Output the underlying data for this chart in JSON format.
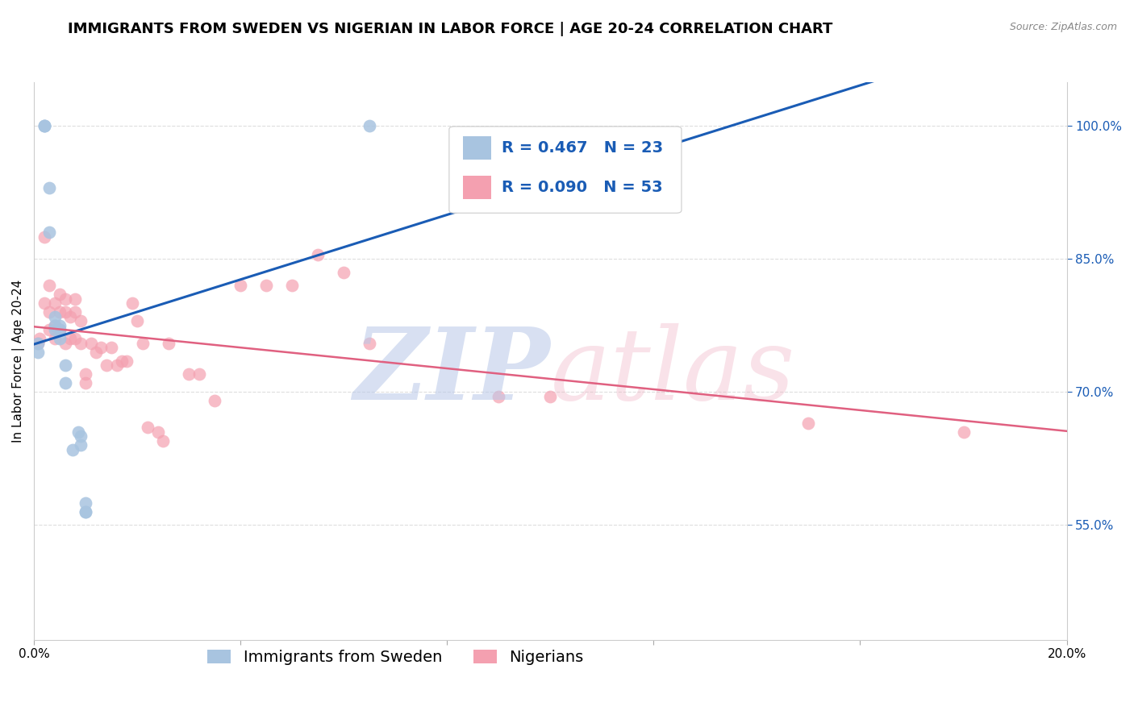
{
  "title": "IMMIGRANTS FROM SWEDEN VS NIGERIAN IN LABOR FORCE | AGE 20-24 CORRELATION CHART",
  "source": "Source: ZipAtlas.com",
  "ylabel": "In Labor Force | Age 20-24",
  "xlim": [
    0.0,
    0.2
  ],
  "ylim": [
    0.42,
    1.05
  ],
  "yticks": [
    0.55,
    0.7,
    0.85,
    1.0
  ],
  "ytick_labels": [
    "55.0%",
    "70.0%",
    "85.0%",
    "100.0%"
  ],
  "xticks": [
    0.0,
    0.04,
    0.08,
    0.12,
    0.16,
    0.2
  ],
  "xtick_labels": [
    "0.0%",
    "",
    "",
    "",
    "",
    "20.0%"
  ],
  "r_sweden": 0.467,
  "n_sweden": 23,
  "r_nigeria": 0.09,
  "n_nigeria": 53,
  "sweden_color": "#a8c4e0",
  "nigeria_color": "#f4a0b0",
  "sweden_line_color": "#1a5cb5",
  "nigeria_line_color": "#e06080",
  "sweden_x": [
    0.0008,
    0.0008,
    0.002,
    0.002,
    0.002,
    0.003,
    0.003,
    0.004,
    0.004,
    0.004,
    0.005,
    0.005,
    0.005,
    0.006,
    0.006,
    0.0075,
    0.0085,
    0.009,
    0.009,
    0.01,
    0.01,
    0.01,
    0.065
  ],
  "sweden_y": [
    0.755,
    0.745,
    1.0,
    1.0,
    1.0,
    0.93,
    0.88,
    0.785,
    0.775,
    0.77,
    0.775,
    0.77,
    0.76,
    0.73,
    0.71,
    0.635,
    0.655,
    0.64,
    0.65,
    0.575,
    0.565,
    0.565,
    1.0
  ],
  "nigeria_x": [
    0.0008,
    0.001,
    0.002,
    0.002,
    0.003,
    0.003,
    0.003,
    0.004,
    0.004,
    0.004,
    0.005,
    0.005,
    0.005,
    0.006,
    0.006,
    0.006,
    0.007,
    0.007,
    0.008,
    0.008,
    0.008,
    0.009,
    0.009,
    0.01,
    0.01,
    0.011,
    0.012,
    0.013,
    0.014,
    0.015,
    0.016,
    0.017,
    0.018,
    0.019,
    0.02,
    0.021,
    0.022,
    0.024,
    0.025,
    0.026,
    0.03,
    0.032,
    0.035,
    0.04,
    0.045,
    0.05,
    0.055,
    0.06,
    0.065,
    0.09,
    0.1,
    0.15,
    0.18
  ],
  "nigeria_y": [
    0.755,
    0.76,
    0.875,
    0.8,
    0.82,
    0.79,
    0.77,
    0.8,
    0.775,
    0.76,
    0.81,
    0.79,
    0.77,
    0.805,
    0.79,
    0.755,
    0.785,
    0.76,
    0.805,
    0.79,
    0.76,
    0.78,
    0.755,
    0.72,
    0.71,
    0.755,
    0.745,
    0.75,
    0.73,
    0.75,
    0.73,
    0.735,
    0.735,
    0.8,
    0.78,
    0.755,
    0.66,
    0.655,
    0.645,
    0.755,
    0.72,
    0.72,
    0.69,
    0.82,
    0.82,
    0.82,
    0.855,
    0.835,
    0.755,
    0.695,
    0.695,
    0.665,
    0.655
  ],
  "background_color": "#ffffff",
  "grid_color": "#dddddd",
  "title_fontsize": 13,
  "axis_label_fontsize": 11,
  "tick_fontsize": 11,
  "legend_fontsize": 14
}
